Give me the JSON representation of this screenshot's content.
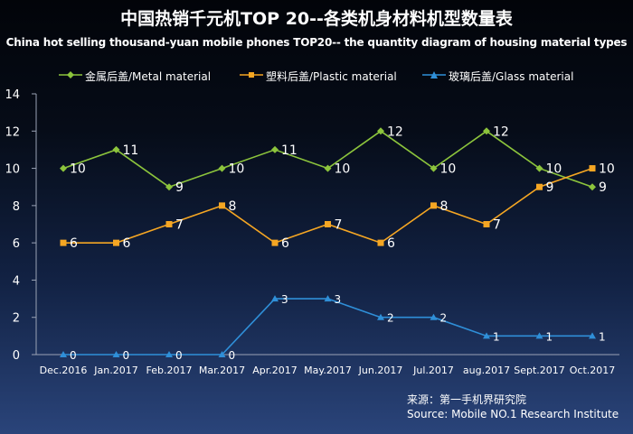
{
  "chart_data": {
    "type": "line",
    "title": "中国热销千元机TOP 20--各类机身材料机型数量表",
    "subtitle": "China hot selling thousand-yuan mobile phones TOP20-- the quantity diagram of housing material types",
    "xlabel": "",
    "ylabel": "",
    "ylim": [
      0,
      14
    ],
    "yticks": [
      0,
      2,
      4,
      6,
      8,
      10,
      12,
      14
    ],
    "grid": false,
    "legend": "top",
    "categories": [
      "Dec.2016",
      "Jan.2017",
      "Feb.2017",
      "Mar.2017",
      "Apr.2017",
      "May.2017",
      "Jun.2017",
      "Jul.2017",
      "aug.2017",
      "Sept.2017",
      "Oct.2017"
    ],
    "series": [
      {
        "name": "金属后盖/Metal material",
        "color": "#8cc43c",
        "marker": "diamond",
        "values": [
          10,
          11,
          9,
          10,
          11,
          10,
          12,
          10,
          12,
          10,
          9
        ]
      },
      {
        "name": "塑料后盖/Plastic material",
        "color": "#f5a623",
        "marker": "square",
        "values": [
          6,
          6,
          7,
          8,
          6,
          7,
          6,
          8,
          7,
          9,
          10
        ]
      },
      {
        "name": "玻璃后盖/Glass material",
        "color": "#2f8fd8",
        "marker": "triangle",
        "values": [
          0,
          0,
          0,
          0,
          3,
          3,
          2,
          2,
          1,
          1,
          1
        ]
      }
    ]
  },
  "source": {
    "line1": "来源：第一手机界研究院",
    "line2": "Source: Mobile NO.1 Research Institute"
  }
}
